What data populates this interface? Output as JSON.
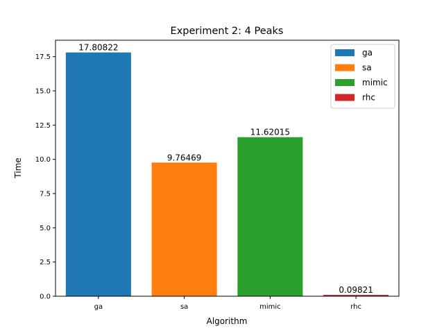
{
  "chart_data": {
    "type": "bar",
    "title": "Experiment 2: 4 Peaks",
    "xlabel": "Algorithm",
    "ylabel": "Time",
    "categories": [
      "ga",
      "sa",
      "mimic",
      "rhc"
    ],
    "values": [
      17.80822,
      9.76469,
      11.62015,
      0.09821
    ],
    "value_labels": [
      "17.80822",
      "9.76469",
      "11.62015",
      "0.09821"
    ],
    "colors": [
      "#1f77b4",
      "#ff7f0e",
      "#2ca02c",
      "#d62728"
    ],
    "ylim": [
      0,
      18.7
    ],
    "yticks": [
      0.0,
      2.5,
      5.0,
      7.5,
      10.0,
      12.5,
      15.0,
      17.5
    ],
    "ytick_labels": [
      "0.0",
      "2.5",
      "5.0",
      "7.5",
      "10.0",
      "12.5",
      "15.0",
      "17.5"
    ],
    "grid": false,
    "legend": {
      "placement": "top-right",
      "entries": [
        "ga",
        "sa",
        "mimic",
        "rhc"
      ]
    }
  }
}
